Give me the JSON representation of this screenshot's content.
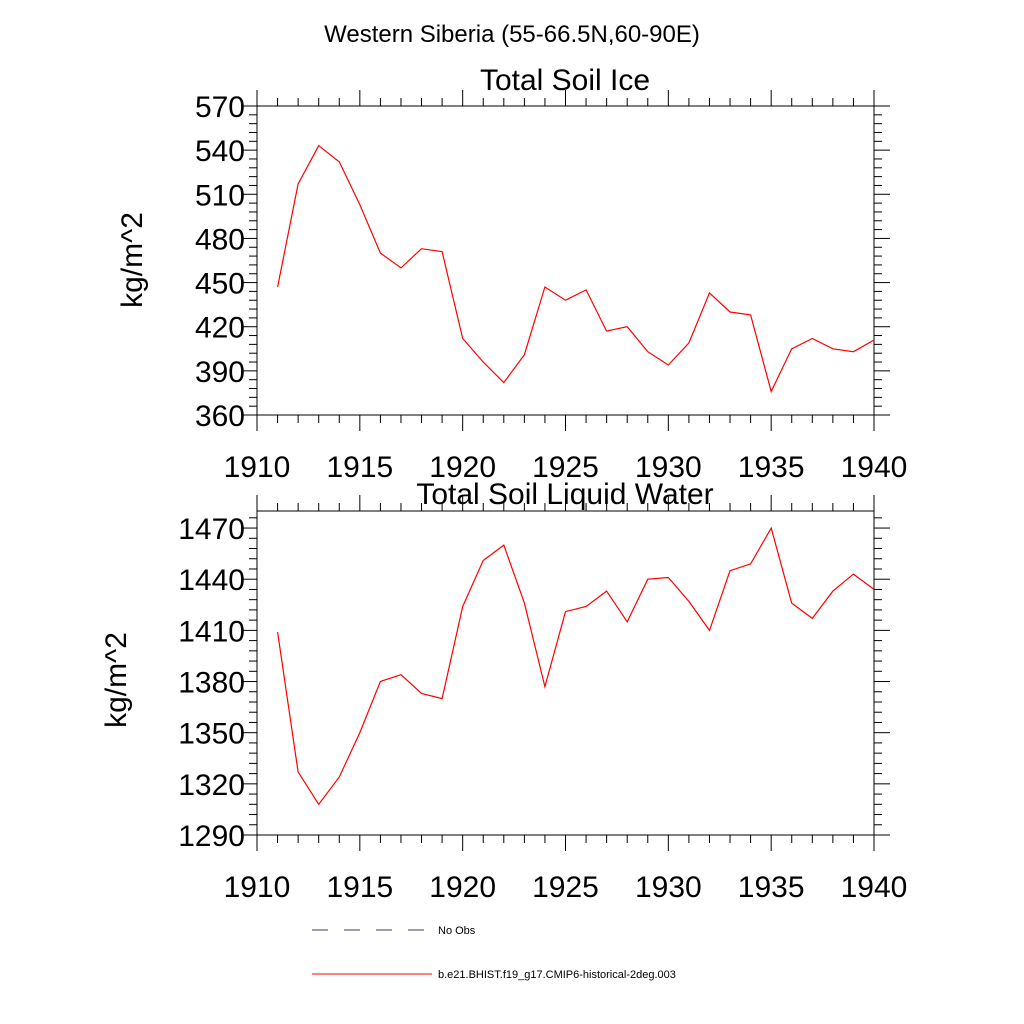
{
  "figure_title": "Western Siberia (55-66.5N,60-90E)",
  "chart_data": [
    {
      "type": "line",
      "title": "Total Soil Ice",
      "ylabel": "kg/m^2",
      "xlabel": "",
      "xlim": [
        1910,
        1940
      ],
      "ylim": [
        360,
        570
      ],
      "xticks": [
        1910,
        1915,
        1920,
        1925,
        1930,
        1935,
        1940
      ],
      "yticks": [
        360,
        390,
        420,
        450,
        480,
        510,
        540,
        570
      ],
      "grid": false,
      "series": [
        {
          "name": "b.e21.BHIST.f19_g17.CMIP6-historical-2deg.003",
          "color": "#ff0000",
          "x": [
            1911,
            1912,
            1913,
            1914,
            1915,
            1916,
            1917,
            1918,
            1919,
            1920,
            1921,
            1922,
            1923,
            1924,
            1925,
            1926,
            1927,
            1928,
            1929,
            1930,
            1931,
            1932,
            1933,
            1934,
            1935,
            1936,
            1937,
            1938,
            1939,
            1940
          ],
          "y": [
            447,
            517,
            543,
            532,
            503,
            470,
            460,
            473,
            471,
            412,
            396,
            382,
            401,
            447,
            438,
            445,
            417,
            420,
            403,
            394,
            409,
            443,
            430,
            428,
            376,
            405,
            412,
            405,
            403,
            411
          ]
        }
      ]
    },
    {
      "type": "line",
      "title": "Total Soil Liquid Water",
      "ylabel": "kg/m^2",
      "xlabel": "",
      "xlim": [
        1910,
        1940
      ],
      "ylim": [
        1290,
        1480
      ],
      "xticks": [
        1910,
        1915,
        1920,
        1925,
        1930,
        1935,
        1940
      ],
      "yticks": [
        1290,
        1320,
        1350,
        1380,
        1410,
        1440,
        1470
      ],
      "grid": false,
      "series": [
        {
          "name": "b.e21.BHIST.f19_g17.CMIP6-historical-2deg.003",
          "color": "#ff0000",
          "x": [
            1911,
            1912,
            1913,
            1914,
            1915,
            1916,
            1917,
            1918,
            1919,
            1920,
            1921,
            1922,
            1923,
            1924,
            1925,
            1926,
            1927,
            1928,
            1929,
            1930,
            1931,
            1932,
            1933,
            1934,
            1935,
            1936,
            1937,
            1938,
            1939,
            1940
          ],
          "y": [
            1409,
            1327,
            1308,
            1324,
            1350,
            1380,
            1384,
            1373,
            1370,
            1424,
            1451,
            1460,
            1426,
            1377,
            1421,
            1424,
            1433,
            1415,
            1440,
            1441,
            1427,
            1410,
            1445,
            1449,
            1470,
            1426,
            1417,
            1433,
            1443,
            1434
          ]
        }
      ]
    }
  ],
  "legend": {
    "items": [
      {
        "label": "No Obs",
        "style": "dashed",
        "color": "#3b3b6e"
      },
      {
        "label": "b.e21.BHIST.f19_g17.CMIP6-historical-2deg.003",
        "style": "solid",
        "color": "#ff0000"
      }
    ]
  }
}
